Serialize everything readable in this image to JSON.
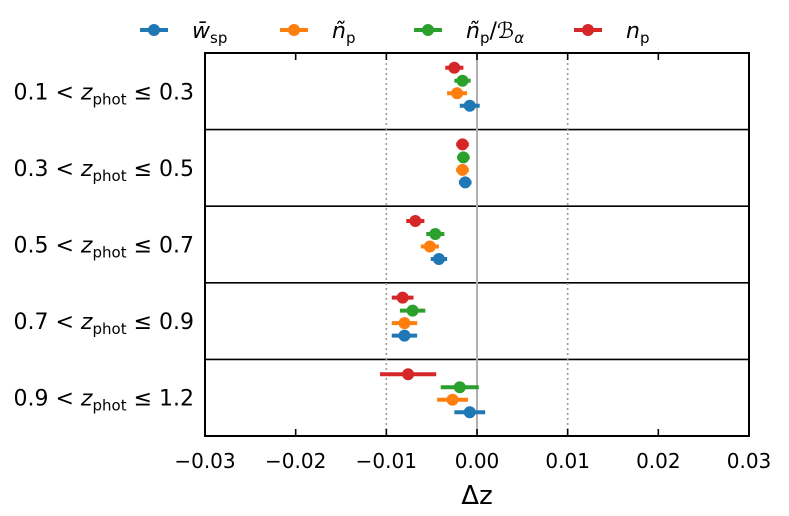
{
  "chart_data": {
    "type": "scatter",
    "subtype": "forest-plot-errorbars",
    "title": "",
    "xlabel": "Δz",
    "ylabel": "",
    "xlim": [
      -0.03,
      0.03
    ],
    "x_ticks": [
      -0.03,
      -0.02,
      -0.01,
      0.0,
      0.01,
      0.02,
      0.03
    ],
    "x_tick_labels": [
      "−0.03",
      "−0.02",
      "−0.01",
      "0.00",
      "0.01",
      "0.02",
      "0.03"
    ],
    "reference_lines": [
      {
        "x": -0.01,
        "style": "dotted",
        "color": "#999999"
      },
      {
        "x": 0.0,
        "style": "solid",
        "color": "#b0b0b0"
      },
      {
        "x": 0.01,
        "style": "dotted",
        "color": "#999999"
      }
    ],
    "legend_position": "top",
    "bins": [
      {
        "label": {
          "pre": "0.1 < ",
          "var": "z",
          "sub": "phot",
          "post": " ≤ 0.3"
        }
      },
      {
        "label": {
          "pre": "0.3 < ",
          "var": "z",
          "sub": "phot",
          "post": " ≤ 0.5"
        }
      },
      {
        "label": {
          "pre": "0.5 < ",
          "var": "z",
          "sub": "phot",
          "post": " ≤ 0.7"
        }
      },
      {
        "label": {
          "pre": "0.7 < ",
          "var": "z",
          "sub": "phot",
          "post": " ≤ 0.9"
        }
      },
      {
        "label": {
          "pre": "0.9 < ",
          "var": "z",
          "sub": "phot",
          "post": " ≤ 1.2"
        }
      }
    ],
    "series": [
      {
        "name": "w_sp",
        "legend": {
          "base": "w",
          "accent": "̄",
          "sub": "sp"
        },
        "color": "#1f77b4",
        "values": [
          -0.0008,
          -0.0013,
          -0.0042,
          -0.008,
          -0.0008
        ],
        "errors": [
          0.0011,
          0.0007,
          0.0009,
          0.0014,
          0.0017
        ]
      },
      {
        "name": "n_p tilde",
        "legend": {
          "base": "n",
          "accent": "̃",
          "sub": "p"
        },
        "color": "#ff7f0e",
        "values": [
          -0.0022,
          -0.0016,
          -0.0052,
          -0.008,
          -0.0027
        ],
        "errors": [
          0.0011,
          0.0007,
          0.001,
          0.0014,
          0.0017
        ]
      },
      {
        "name": "n_p tilde / B_alpha",
        "legend": {
          "base": "n",
          "accent": "̃",
          "sub": "p",
          "suffix": "/",
          "extra_base": "ℬ",
          "extra_sub": "α"
        },
        "color": "#2ca02c",
        "values": [
          -0.0016,
          -0.0015,
          -0.0046,
          -0.0071,
          -0.0019
        ],
        "errors": [
          0.0009,
          0.0007,
          0.001,
          0.0014,
          0.0021
        ]
      },
      {
        "name": "n_p",
        "legend": {
          "base": "n",
          "sub": "p"
        },
        "color": "#d62728",
        "values": [
          -0.0025,
          -0.0016,
          -0.0068,
          -0.0082,
          -0.0076
        ],
        "errors": [
          0.001,
          0.0007,
          0.001,
          0.0012,
          0.0031
        ]
      }
    ]
  }
}
